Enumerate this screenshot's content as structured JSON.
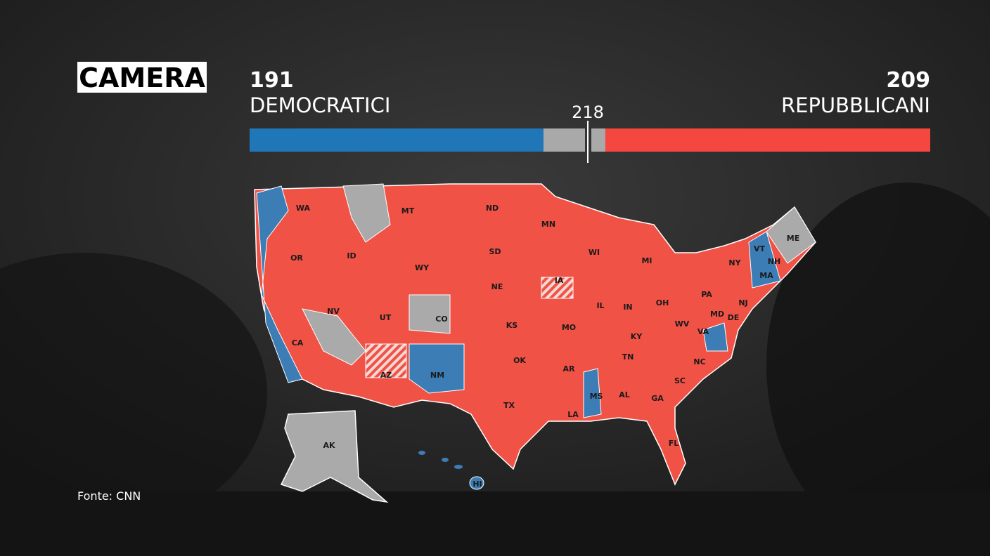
{
  "header": {
    "title": "CAMERA"
  },
  "dem": {
    "seats": 191,
    "label": "DEMOCRATICI"
  },
  "rep": {
    "seats": 209,
    "label": "REPUBBLICANI"
  },
  "majority": 218,
  "map": {
    "labels": [
      "WA",
      "OR",
      "ID",
      "MT",
      "ND",
      "MN",
      "WI",
      "MI",
      "NY",
      "VT",
      "NH",
      "ME",
      "MA",
      "NJ",
      "PA",
      "OH",
      "IN",
      "IL",
      "IA",
      "SD",
      "NE",
      "WY",
      "NV",
      "UT",
      "CO",
      "CA",
      "AZ",
      "NM",
      "KS",
      "MO",
      "OK",
      "TX",
      "AR",
      "MS",
      "AL",
      "GA",
      "TN",
      "KY",
      "WV",
      "VA",
      "MD",
      "DE",
      "NC",
      "SC",
      "LA",
      "FL",
      "AK",
      "HI"
    ]
  },
  "source": "Fonte: CNN"
}
